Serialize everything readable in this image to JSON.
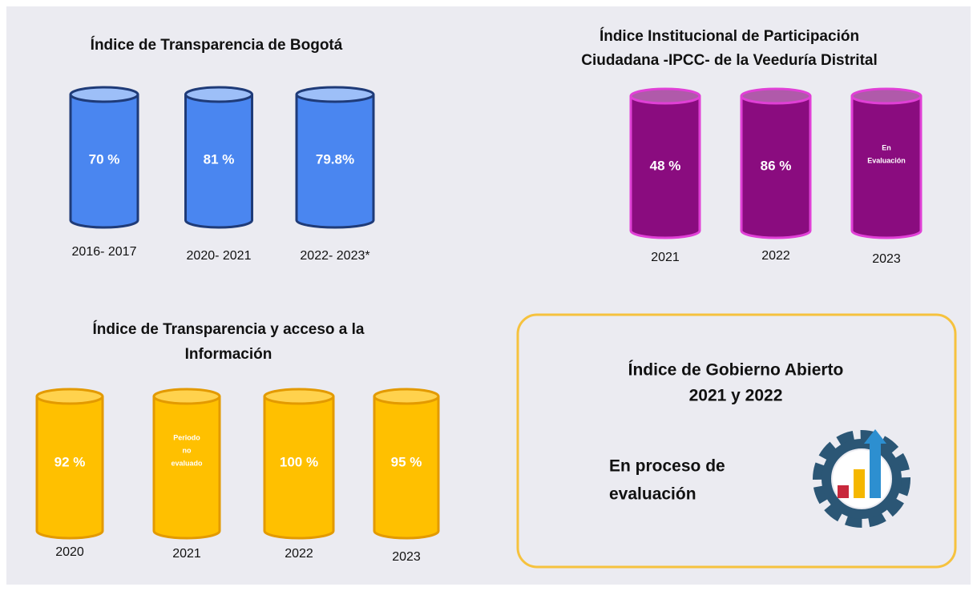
{
  "panels": [
    {
      "title": [
        "Índice de Transparencia de Bogotá"
      ],
      "items": [
        {
          "value": [
            "70 %"
          ],
          "period": "2016- 2017"
        },
        {
          "value": [
            "81 %"
          ],
          "period": "2020- 2021"
        },
        {
          "value": [
            "79.8%"
          ],
          "period": "2022- 2023*"
        }
      ]
    },
    {
      "title": [
        "Índice Institucional de Participación",
        "Ciudadana -IPCC- de la Veeduría Distrital"
      ],
      "items": [
        {
          "value": [
            "48 %"
          ],
          "period": "2021"
        },
        {
          "value": [
            "86 %"
          ],
          "period": "2022"
        },
        {
          "value": [
            "En",
            "Evaluación"
          ],
          "period": "2023"
        }
      ]
    },
    {
      "title": [
        "Índice de Transparencia y acceso a la",
        "Información"
      ],
      "items": [
        {
          "value": [
            "92 %"
          ],
          "period": "2020"
        },
        {
          "value": [
            "Periodo",
            "no",
            "evaluado"
          ],
          "period": "2021"
        },
        {
          "value": [
            "100 %"
          ],
          "period": "2022"
        },
        {
          "value": [
            "95 %"
          ],
          "period": "2023"
        }
      ]
    }
  ],
  "summary": {
    "title": [
      "Índice de Gobierno Abierto",
      "2021 y  2022"
    ],
    "status": [
      "En  proceso de",
      "evaluación"
    ]
  }
}
